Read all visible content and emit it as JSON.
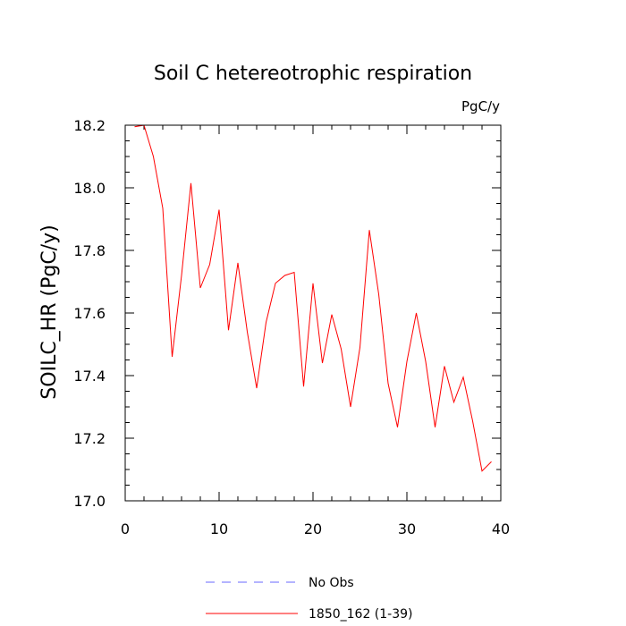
{
  "chart_data": {
    "type": "line",
    "title": "Soil C hetereotrophic respiration",
    "units_label": "PgC/y",
    "ylabel": "SOILC_HR  (PgC/y)",
    "xlabel": "",
    "xlim": [
      0,
      40
    ],
    "ylim": [
      17.0,
      18.2
    ],
    "x_ticks": [
      0,
      10,
      20,
      30,
      40
    ],
    "y_ticks": [
      "17.0",
      "17.2",
      "17.4",
      "17.6",
      "17.8",
      "18.0",
      "18.2"
    ],
    "grid": false,
    "legend_position": "bottom",
    "series": [
      {
        "name": "No Obs",
        "color": "#6a6aff",
        "dash": "dashed",
        "x": [],
        "values": []
      },
      {
        "name": "1850_162 (1-39)",
        "color": "#ff0000",
        "dash": "solid",
        "x": [
          1,
          2,
          3,
          4,
          5,
          6,
          7,
          8,
          9,
          10,
          11,
          12,
          13,
          14,
          15,
          16,
          17,
          18,
          19,
          20,
          21,
          22,
          23,
          24,
          25,
          26,
          27,
          28,
          29,
          30,
          31,
          32,
          33,
          34,
          35,
          36,
          37,
          38,
          39
        ],
        "values": [
          18.195,
          18.2,
          18.1,
          17.935,
          17.46,
          17.72,
          18.015,
          17.68,
          17.755,
          17.93,
          17.545,
          17.76,
          17.54,
          17.36,
          17.57,
          17.695,
          17.72,
          17.73,
          17.365,
          17.695,
          17.44,
          17.595,
          17.485,
          17.3,
          17.49,
          17.865,
          17.66,
          17.375,
          17.235,
          17.445,
          17.6,
          17.445,
          17.235,
          17.43,
          17.315,
          17.395,
          17.255,
          17.095,
          17.125
        ]
      }
    ]
  }
}
